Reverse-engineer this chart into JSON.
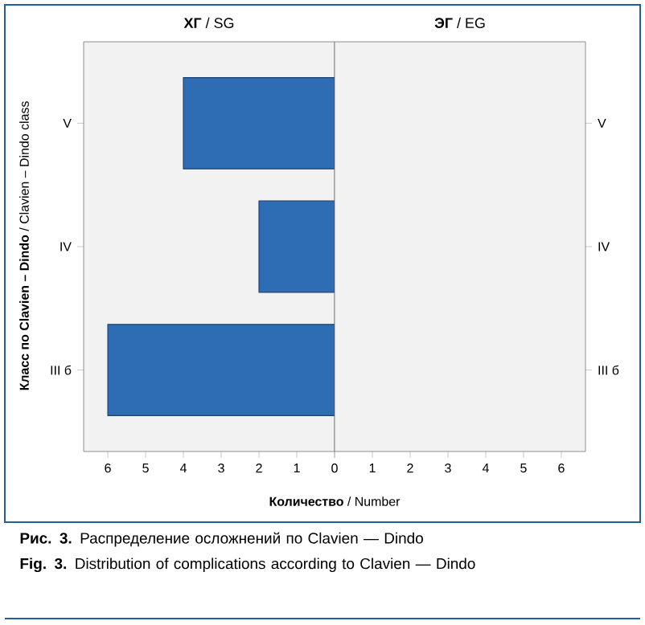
{
  "chart_data": [
    {
      "type": "bar",
      "orientation": "horizontal",
      "title": "**ХГ** / SG",
      "ylabel": "**Класс по Clavien – Dindo** / Clavien – Dindo class",
      "xlabel": "**Количество** / Number",
      "categories": [
        "V",
        "IV",
        "III б"
      ],
      "values": [
        4,
        2,
        6
      ],
      "color": "#2e6db4",
      "xlim": [
        6.64,
        0
      ],
      "xticks": [
        6,
        5,
        4,
        3,
        2,
        1,
        0
      ],
      "annotations": [
        "**Рис. 3.** Распределение осложнений по Clavien — Dindo",
        "**Fig. 3.** Distribution of complications according to Clavien — Dindo"
      ]
    },
    {
      "type": "bar",
      "orientation": "horizontal",
      "title": "**ЭГ** / EG",
      "categories": [
        "V",
        "IV",
        "III б"
      ],
      "values": [
        null,
        null,
        null
      ],
      "xlim": [
        0,
        6.64
      ],
      "xticks": [
        {
          "value": 0,
          "label": null
        },
        1,
        2,
        3,
        4,
        5,
        6
      ]
    }
  ]
}
